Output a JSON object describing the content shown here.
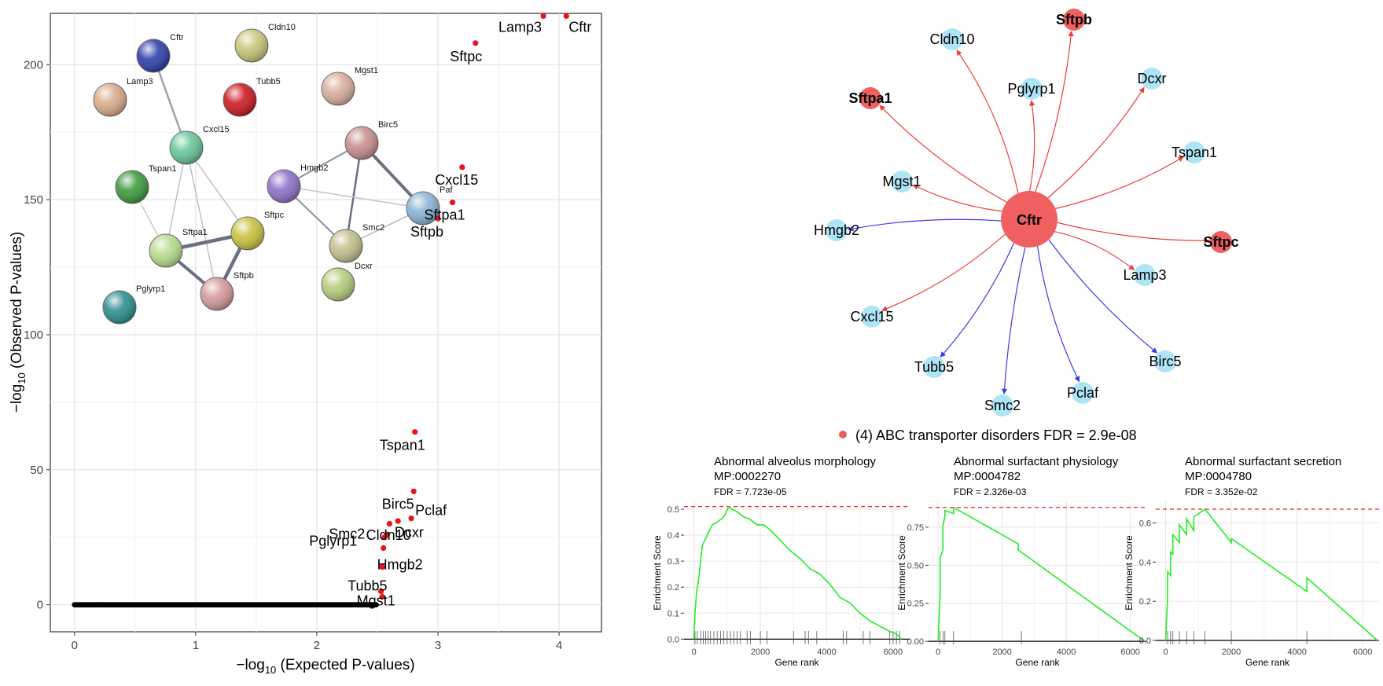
{
  "colors": {
    "point_sig": "#e8141b",
    "point_ns": "#000000",
    "net_red_node": "#f06060",
    "net_blue_node": "#aee4f5",
    "edge_red": "#ee3b3b",
    "edge_blue": "#3b3be8",
    "curve": "#22ee22",
    "fdr_line": "#ee2222",
    "legend_dot": "#e86060"
  },
  "chart_data": [
    {
      "type": "scatter",
      "title": "",
      "xlabel_prefix": "−log",
      "xlabel_sub": "10",
      "xlabel_suffix": " (Expected P-values)",
      "ylabel_prefix": "−log",
      "ylabel_sub": "10",
      "ylabel_suffix": " (Observed P-values)",
      "xlim": [
        -0.2,
        4.35
      ],
      "ylim": [
        -10,
        219
      ],
      "xticks": [
        0,
        1,
        2,
        3,
        4
      ],
      "yticks": [
        0,
        50,
        100,
        150,
        200
      ],
      "grid": true,
      "baseline_points": {
        "x_from": 0,
        "x_to": 2.49,
        "y": 0,
        "count": 260
      },
      "labeled_points": [
        {
          "label": "Lamp3",
          "x": 3.87,
          "y": 218
        },
        {
          "label": "Cftr",
          "x": 4.06,
          "y": 218
        },
        {
          "label": "Sftpc",
          "x": 3.31,
          "y": 208
        },
        {
          "label": "Cxcl15",
          "x": 3.2,
          "y": 162
        },
        {
          "label": "Sftpa1",
          "x": 3.12,
          "y": 149
        },
        {
          "label": "Sftpb",
          "x": 3.0,
          "y": 143
        },
        {
          "label": "Tspan1",
          "x": 2.81,
          "y": 64
        },
        {
          "label": "Birc5",
          "x": 2.8,
          "y": 42
        },
        {
          "label": "Cldn10",
          "x": 2.67,
          "y": 31
        },
        {
          "label": "Pclaf",
          "x": 2.78,
          "y": 32
        },
        {
          "label": "Dcxr",
          "x": 2.6,
          "y": 30
        },
        {
          "label": "Smc2",
          "x": 2.58,
          "y": 26
        },
        {
          "label": "Pglyrp1",
          "x": 2.56,
          "y": 25
        },
        {
          "label": "Hmgb2",
          "x": 2.55,
          "y": 21
        },
        {
          "label": "Tubb5",
          "x": 2.54,
          "y": 14
        },
        {
          "label": "Mgst1",
          "x": 2.53,
          "y": 5
        },
        {
          "label": "",
          "x": 2.54,
          "y": 3
        }
      ],
      "inset_network": {
        "nodes": [
          "Cftr",
          "Cldn10",
          "Lamp3",
          "Tubb5",
          "Mgst1",
          "Cxcl15",
          "Birc5",
          "Tspan1",
          "Hmgb2",
          "Paf",
          "Sftpc",
          "Smc2",
          "Sftpa1",
          "Dcxr",
          "Sftpb",
          "Pglyrp1"
        ],
        "node_colors": [
          "#2f3fa8",
          "#c9c57a",
          "#d8ab8a",
          "#cc1b24",
          "#d8ae9e",
          "#6ac59a",
          "#c78f8f",
          "#3f9a3f",
          "#8f72c8",
          "#8ab4d6",
          "#c8c240",
          "#c0c08c",
          "#b9db8e",
          "#b6cc7e",
          "#d49a9a",
          "#2e8e8e"
        ]
      }
    },
    {
      "type": "network",
      "center": "Cftr",
      "nodes": [
        {
          "label": "Cldn10",
          "type": "blue",
          "edge": "red"
        },
        {
          "label": "Sftpb",
          "type": "red",
          "edge": "red"
        },
        {
          "label": "Pglyrp1",
          "type": "blue",
          "edge": "red"
        },
        {
          "label": "Dcxr",
          "type": "blue",
          "edge": "red"
        },
        {
          "label": "Sftpa1",
          "type": "red",
          "edge": "red"
        },
        {
          "label": "Tspan1",
          "type": "blue",
          "edge": "red"
        },
        {
          "label": "Mgst1",
          "type": "blue",
          "edge": "red"
        },
        {
          "label": "Hmgb2",
          "type": "blue",
          "edge": "blue"
        },
        {
          "label": "Sftpc",
          "type": "red",
          "edge": "red"
        },
        {
          "label": "Lamp3",
          "type": "blue",
          "edge": "red"
        },
        {
          "label": "Cxcl15",
          "type": "blue",
          "edge": "red"
        },
        {
          "label": "Tubb5",
          "type": "blue",
          "edge": "blue"
        },
        {
          "label": "Birc5",
          "type": "blue",
          "edge": "blue"
        },
        {
          "label": "Pclaf",
          "type": "blue",
          "edge": "blue"
        },
        {
          "label": "Smc2",
          "type": "blue",
          "edge": "blue"
        }
      ],
      "legend": "(4) ABC transporter disorders FDR = 2.9e-08"
    },
    {
      "type": "line",
      "title": "Abnormal alveolus morphology",
      "subtitle": "MP:0002270",
      "fdr": "FDR = 7.723e-05",
      "xlabel": "Gene rank",
      "ylabel": "Enrichment Score",
      "xlim": [
        -300,
        6500
      ],
      "ylim": [
        -0.02,
        0.53
      ],
      "xticks": [
        0,
        2000,
        4000,
        6000
      ],
      "yticks": [
        0.0,
        0.1,
        0.2,
        0.3,
        0.4,
        0.5
      ],
      "ytick_labels": [
        "0.0",
        "0.1",
        "0.2",
        "0.3",
        "0.4",
        "0.5"
      ],
      "max_line": 0.51,
      "curve_x": [
        0,
        30,
        80,
        150,
        250,
        400,
        550,
        700,
        900,
        1050,
        1150,
        1300,
        1500,
        1700,
        1900,
        2100,
        2300,
        2600,
        2900,
        3200,
        3500,
        3800,
        4100,
        4400,
        4700,
        5000,
        5300,
        5600,
        5900,
        6100,
        6250
      ],
      "curve_y": [
        0.0,
        0.1,
        0.18,
        0.24,
        0.36,
        0.4,
        0.44,
        0.45,
        0.47,
        0.51,
        0.5,
        0.49,
        0.47,
        0.46,
        0.44,
        0.44,
        0.42,
        0.38,
        0.34,
        0.31,
        0.27,
        0.25,
        0.21,
        0.16,
        0.14,
        0.1,
        0.07,
        0.05,
        0.03,
        0.02,
        0.0
      ],
      "ticks": [
        30,
        100,
        200,
        280,
        350,
        420,
        500,
        600,
        700,
        800,
        900,
        1000,
        1100,
        1200,
        1300,
        1400,
        1600,
        1700,
        2000,
        2200,
        3000,
        3350,
        3450,
        3700,
        4500,
        4600,
        5100,
        5300,
        5900,
        6000,
        6100,
        6200
      ]
    },
    {
      "type": "line",
      "title": "Abnormal surfactant physiology",
      "subtitle": "MP:0004782",
      "fdr": "FDR = 2.326e-03",
      "xlabel": "Gene rank",
      "ylabel": "Enrichment Score",
      "xlim": [
        -300,
        6500
      ],
      "ylim": [
        -0.02,
        0.92
      ],
      "xticks": [
        0,
        2000,
        4000,
        6000
      ],
      "yticks": [
        0.0,
        0.25,
        0.5,
        0.75
      ],
      "ytick_labels": [
        "0.00",
        "0.25",
        "0.50",
        "0.75"
      ],
      "max_line": 0.88,
      "curve_x": [
        0,
        60,
        60,
        150,
        150,
        210,
        210,
        480,
        480,
        2500,
        2500,
        6450
      ],
      "curve_y": [
        0.0,
        0.3,
        0.55,
        0.6,
        0.76,
        0.82,
        0.86,
        0.84,
        0.88,
        0.64,
        0.6,
        0.0
      ],
      "ticks": [
        60,
        150,
        210,
        480,
        2600
      ]
    },
    {
      "type": "line",
      "title": "Abnormal surfactant secretion",
      "subtitle": "MP:0004780",
      "fdr": "FDR = 3.352e-02",
      "xlabel": "Gene rank",
      "ylabel": "Enrichment Score",
      "xlim": [
        -300,
        6500
      ],
      "ylim": [
        -0.02,
        0.71
      ],
      "xticks": [
        0,
        2000,
        4000,
        6000
      ],
      "yticks": [
        0.0,
        0.2,
        0.4,
        0.6
      ],
      "ytick_labels": [
        "0.0",
        "0.2",
        "0.4",
        "0.6"
      ],
      "max_line": 0.67,
      "curve_x": [
        0,
        60,
        60,
        150,
        150,
        220,
        220,
        420,
        420,
        640,
        640,
        860,
        860,
        1200,
        2000,
        2000,
        4300,
        4300,
        6450
      ],
      "curve_y": [
        0.0,
        0.22,
        0.35,
        0.33,
        0.45,
        0.44,
        0.54,
        0.5,
        0.59,
        0.54,
        0.62,
        0.56,
        0.63,
        0.67,
        0.5,
        0.52,
        0.25,
        0.32,
        0.0
      ],
      "ticks": [
        60,
        150,
        220,
        420,
        640,
        860,
        1200,
        2000,
        4300
      ]
    }
  ]
}
